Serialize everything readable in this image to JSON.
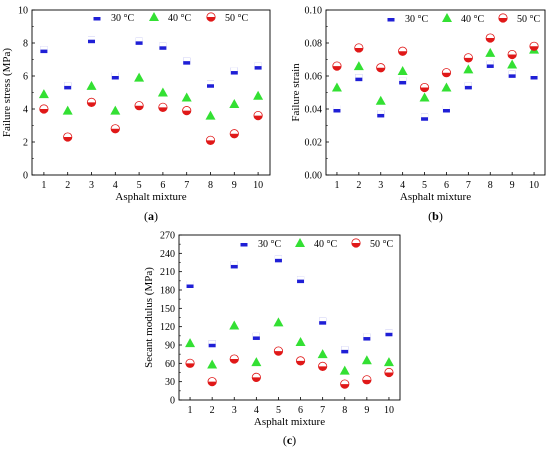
{
  "chart_data": [
    {
      "type": "scatter",
      "panel_label": "(a)",
      "xlabel": "Asphalt mixture",
      "ylabel": "Failure stress (MPa)",
      "x": [
        1,
        2,
        3,
        4,
        5,
        6,
        7,
        8,
        9,
        10
      ],
      "xlim": [
        0.5,
        10.5
      ],
      "ylim": [
        0,
        10
      ],
      "yticks": [
        "0",
        "2",
        "4",
        "6",
        "8",
        "10"
      ],
      "legend_position": "top",
      "series": [
        {
          "name": "30 °C",
          "marker": "square",
          "values": [
            7.6,
            5.4,
            8.2,
            6.0,
            8.1,
            7.8,
            6.9,
            5.5,
            6.3,
            6.6
          ]
        },
        {
          "name": "40 °C",
          "marker": "triangle",
          "values": [
            4.9,
            3.9,
            5.4,
            3.9,
            5.9,
            5.0,
            4.7,
            3.6,
            4.3,
            4.8
          ]
        },
        {
          "name": "50 °C",
          "marker": "circle",
          "values": [
            4.0,
            2.3,
            4.4,
            2.8,
            4.2,
            4.1,
            3.9,
            2.1,
            2.5,
            3.6
          ]
        }
      ]
    },
    {
      "type": "scatter",
      "panel_label": "(b)",
      "xlabel": "Asphalt mixture",
      "ylabel": "Failure strain",
      "x": [
        1,
        2,
        3,
        4,
        5,
        6,
        7,
        8,
        9,
        10
      ],
      "xlim": [
        0.5,
        10.5
      ],
      "ylim": [
        0,
        0.1
      ],
      "yticks": [
        "0.00",
        "0.02",
        "0.04",
        "0.06",
        "0.08",
        "0.10"
      ],
      "legend_position": "top",
      "series": [
        {
          "name": "30 °C",
          "marker": "square",
          "values": [
            0.04,
            0.059,
            0.037,
            0.057,
            0.035,
            0.04,
            0.054,
            0.067,
            0.061,
            0.06
          ]
        },
        {
          "name": "40 °C",
          "marker": "triangle",
          "values": [
            0.053,
            0.066,
            0.045,
            0.063,
            0.047,
            0.053,
            0.064,
            0.074,
            0.067,
            0.076
          ]
        },
        {
          "name": "50 °C",
          "marker": "circle",
          "values": [
            0.066,
            0.077,
            0.065,
            0.075,
            0.053,
            0.062,
            0.071,
            0.083,
            0.073,
            0.078
          ]
        }
      ]
    },
    {
      "type": "scatter",
      "panel_label": "(c)",
      "xlabel": "Asphalt mixture",
      "ylabel": "Secant modulus (MPa)",
      "x": [
        1,
        2,
        3,
        4,
        5,
        6,
        7,
        8,
        9,
        10
      ],
      "xlim": [
        0.5,
        10.5
      ],
      "ylim": [
        0,
        270
      ],
      "yticks": [
        "0",
        "30",
        "60",
        "90",
        "120",
        "150",
        "180",
        "210",
        "240",
        "270"
      ],
      "legend_position": "top",
      "series": [
        {
          "name": "30 °C",
          "marker": "square",
          "values": [
            189,
            92,
            221,
            104,
            231,
            197,
            129,
            82,
            103,
            110
          ]
        },
        {
          "name": "40 °C",
          "marker": "triangle",
          "values": [
            93,
            58,
            122,
            62,
            127,
            95,
            75,
            48,
            65,
            62
          ]
        },
        {
          "name": "50 °C",
          "marker": "circle",
          "values": [
            60,
            30,
            67,
            37,
            80,
            64,
            55,
            26,
            33,
            45
          ]
        }
      ]
    }
  ],
  "colors": {
    "square": "#1f1fd6",
    "triangle": "#33e033",
    "circle": "#e01818",
    "axis": "#000000"
  }
}
